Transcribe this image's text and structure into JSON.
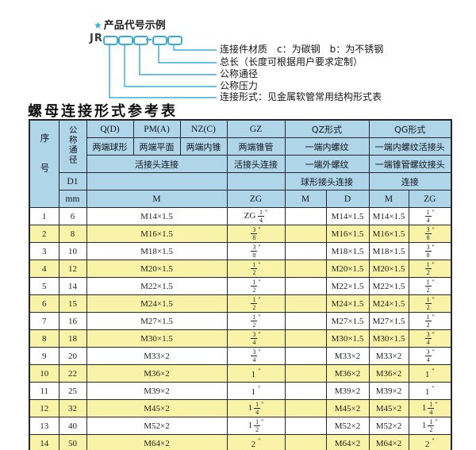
{
  "diagram": {
    "star": "★",
    "title": "产品代号示例",
    "code_prefix": "JR",
    "labels": [
      "连接件材质　c：为碳钢　b：为不锈钢",
      "总长（长度可根据用户要求定制）",
      "公称通径",
      "公称压力",
      "连接形式：见金属软管常用结构形式表"
    ]
  },
  "table_title": "螺母连接形式参考表",
  "table": {
    "header": {
      "seq": "序号",
      "dn": "公称通径",
      "d1": "D1",
      "mm": "mm",
      "col_q": "Q(D)",
      "col_pm": "PM(A)",
      "col_nz": "NZ(C)",
      "col_gz": "GZ",
      "col_qz": "QZ形式",
      "col_qg": "QG形式",
      "desc_q": "两端球形",
      "desc_pm": "两端平面",
      "desc_nz": "两端内锥",
      "desc_gz": "两端锥管",
      "desc_qz": "一端内螺纹",
      "desc_qg": "一端内螺纹活接头",
      "conn_qpmnz": "活接头连接",
      "conn_gz": "活接头连接",
      "conn_qz2": "一端外螺纹",
      "conn_qg2": "一端锥管螺纹接头",
      "conn2_qz": "球形接头连接",
      "conn2_qg": "连接",
      "unit_m": "M",
      "unit_zg": "ZG",
      "unit_qz_m": "M",
      "unit_qz_d": "D",
      "unit_qg_m": "M",
      "unit_qg_zg": "ZG"
    },
    "rows": [
      {
        "no": "1",
        "dn": "6",
        "m": "M14×1.5",
        "gz": {
          "pre": "ZG",
          "n": "1",
          "d": "4"
        },
        "qz_m": "",
        "qz_d": "M14×1.5",
        "qg_m": "M14×1.5",
        "qg_zg": {
          "n": "1",
          "d": "4"
        }
      },
      {
        "no": "2",
        "dn": "8",
        "m": "M16×1.5",
        "gz": {
          "n": "3",
          "d": "8"
        },
        "qz_m": "",
        "qz_d": "M16×1.5",
        "qg_m": "M16×1.5",
        "qg_zg": {
          "n": "3",
          "d": "8"
        }
      },
      {
        "no": "3",
        "dn": "10",
        "m": "M18×1.5",
        "gz": {
          "n": "3",
          "d": "8"
        },
        "qz_m": "",
        "qz_d": "M18×1.5",
        "qg_m": "M18×1.5",
        "qg_zg": {
          "n": "3",
          "d": "8"
        }
      },
      {
        "no": "4",
        "dn": "12",
        "m": "M20×1.5",
        "gz": {
          "n": "1",
          "d": "2"
        },
        "qz_m": "",
        "qz_d": "M20×1.5",
        "qg_m": "M20×1.5",
        "qg_zg": {
          "n": "1",
          "d": "2"
        }
      },
      {
        "no": "5",
        "dn": "14",
        "m": "M22×1.5",
        "gz": {
          "n": "1",
          "d": "2"
        },
        "qz_m": "",
        "qz_d": "M22×1.5",
        "qg_m": "M22×1.5",
        "qg_zg": {
          "n": "1",
          "d": "2"
        }
      },
      {
        "no": "6",
        "dn": "15",
        "m": "M24×1.5",
        "gz": {
          "n": "1",
          "d": "2"
        },
        "qz_m": "",
        "qz_d": "M24×1.5",
        "qg_m": "M24×1.5",
        "qg_zg": {
          "n": "1",
          "d": "2"
        }
      },
      {
        "no": "7",
        "dn": "16",
        "m": "M27×1.5",
        "gz": {
          "n": "1",
          "d": "2"
        },
        "qz_m": "",
        "qz_d": "M27×1.5",
        "qg_m": "M27×1.5",
        "qg_zg": {
          "n": "1",
          "d": "2"
        }
      },
      {
        "no": "8",
        "dn": "18",
        "m": "M30×1.5",
        "gz": {
          "n": "3",
          "d": "4"
        },
        "qz_m": "",
        "qz_d": "M30×1.5",
        "qg_m": "M30×1.5",
        "qg_zg": {
          "n": "3",
          "d": "4"
        }
      },
      {
        "no": "9",
        "dn": "20",
        "m": "M33×2",
        "gz": {
          "n": "3",
          "d": "4"
        },
        "qz_m": "",
        "qz_d": "M33×2",
        "qg_m": "M33×2",
        "qg_zg": {
          "n": "3",
          "d": "4"
        }
      },
      {
        "no": "10",
        "dn": "22",
        "m": "M36×2",
        "gz": {
          "whole": "1"
        },
        "qz_m": "",
        "qz_d": "M36×2",
        "qg_m": "M36×2",
        "qg_zg": {
          "whole": "1"
        }
      },
      {
        "no": "11",
        "dn": "25",
        "m": "M39×2",
        "gz": {
          "whole": "1"
        },
        "qz_m": "",
        "qz_d": "M39×2",
        "qg_m": "M39×2",
        "qg_zg": {
          "whole": "1"
        }
      },
      {
        "no": "12",
        "dn": "32",
        "m": "M45×2",
        "gz": {
          "whole": "1",
          "n": "1",
          "d": "4"
        },
        "qz_m": "",
        "qz_d": "M45×2",
        "qg_m": "M45×2",
        "qg_zg": {
          "whole": "1",
          "n": "1",
          "d": "4"
        }
      },
      {
        "no": "13",
        "dn": "40",
        "m": "M52×2",
        "gz": {
          "whole": "1",
          "n": "1",
          "d": "2"
        },
        "qz_m": "",
        "qz_d": "M52×2",
        "qg_m": "M52×2",
        "qg_zg": {
          "whole": "1",
          "n": "1",
          "d": "2"
        }
      },
      {
        "no": "14",
        "dn": "50",
        "m": "M64×2",
        "gz": {
          "whole": "2"
        },
        "qz_m": "",
        "qz_d": "M64×2",
        "qg_m": "M64×2",
        "qg_zg": {
          "whole": "2"
        }
      }
    ]
  },
  "colors": {
    "accent": "#35aeda",
    "header_bg": "#aed6e8",
    "row_alt": "#f8f3a6",
    "border": "#26262e",
    "text": "#1f1f1f"
  }
}
